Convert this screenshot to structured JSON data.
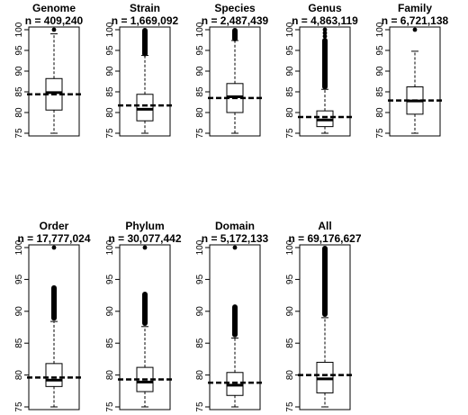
{
  "chart_data": [
    {
      "type": "box",
      "title": "Genome",
      "subtitle": "n = 409,240",
      "ylim": [
        75,
        100
      ],
      "yticks": [
        75,
        80,
        85,
        90,
        95,
        100
      ],
      "box": {
        "whisker_low": 75,
        "q1": 80.6,
        "median": 84.8,
        "q3": 88.2,
        "whisker_high": 99,
        "mean": 84.4
      },
      "outliers": [
        100
      ],
      "outlier_band": null
    },
    {
      "type": "box",
      "title": "Strain",
      "subtitle": "n = 1,669,092",
      "ylim": [
        75,
        100
      ],
      "yticks": [
        75,
        80,
        85,
        90,
        95,
        100
      ],
      "box": {
        "whisker_low": 75,
        "q1": 78,
        "median": 80.8,
        "q3": 84.4,
        "whisker_high": 93.8,
        "mean": 81.7
      },
      "outliers": [],
      "outlier_band": [
        94,
        100
      ]
    },
    {
      "type": "box",
      "title": "Species",
      "subtitle": "n = 2,487,439",
      "ylim": [
        75,
        100
      ],
      "yticks": [
        75,
        80,
        85,
        90,
        95,
        100
      ],
      "box": {
        "whisker_low": 75,
        "q1": 80,
        "median": 83.8,
        "q3": 87,
        "whisker_high": 97.4,
        "mean": 83.5
      },
      "outliers": [],
      "outlier_band": [
        97.6,
        100
      ]
    },
    {
      "type": "box",
      "title": "Genus",
      "subtitle": "n = 4,863,119",
      "ylim": [
        75,
        100
      ],
      "yticks": [
        75,
        80,
        85,
        90,
        95,
        100
      ],
      "box": {
        "whisker_low": 75,
        "q1": 76.6,
        "median": 78.2,
        "q3": 80.4,
        "whisker_high": 85.6,
        "mean": 78.9
      },
      "outliers": [
        100,
        99.2,
        98.4
      ],
      "outlier_band": [
        86,
        97.6
      ]
    },
    {
      "type": "box",
      "title": "Family",
      "subtitle": "n = 6,721,138",
      "ylim": [
        75,
        100
      ],
      "yticks": [
        75,
        80,
        85,
        90,
        95,
        100
      ],
      "box": {
        "whisker_low": 75,
        "q1": 79.6,
        "median": 82.8,
        "q3": 86.2,
        "whisker_high": 94.8,
        "mean": 82.9
      },
      "outliers": [
        100
      ],
      "outlier_band": null
    },
    {
      "type": "box",
      "title": "Order",
      "subtitle": "n = 17,777,024",
      "ylim": [
        75,
        100
      ],
      "yticks": [
        75,
        80,
        85,
        90,
        95,
        100
      ],
      "box": {
        "whisker_low": 75,
        "q1": 78.2,
        "median": 79.2,
        "q3": 81.8,
        "whisker_high": 88.4,
        "mean": 79.6
      },
      "outliers": [
        100
      ],
      "outlier_band": [
        88.8,
        93.8
      ]
    },
    {
      "type": "box",
      "title": "Phylum",
      "subtitle": "n = 30,077,442",
      "ylim": [
        75,
        100
      ],
      "yticks": [
        75,
        80,
        85,
        90,
        95,
        100
      ],
      "box": {
        "whisker_low": 75,
        "q1": 77.4,
        "median": 78.9,
        "q3": 81.2,
        "whisker_high": 87.6,
        "mean": 79.3
      },
      "outliers": [
        100
      ],
      "outlier_band": [
        88,
        92.8
      ]
    },
    {
      "type": "box",
      "title": "Domain",
      "subtitle": "n = 5,172,133",
      "ylim": [
        75,
        100
      ],
      "yticks": [
        75,
        80,
        85,
        90,
        95,
        100
      ],
      "box": {
        "whisker_low": 75,
        "q1": 76.8,
        "median": 78.4,
        "q3": 80.4,
        "whisker_high": 85.8,
        "mean": 78.8
      },
      "outliers": [
        100
      ],
      "outlier_band": [
        86.2,
        90.8
      ]
    },
    {
      "type": "box",
      "title": "All",
      "subtitle": "n = 69,176,627",
      "ylim": [
        75,
        100
      ],
      "yticks": [
        75,
        80,
        85,
        90,
        95,
        100
      ],
      "box": {
        "whisker_low": 75,
        "q1": 77.2,
        "median": 79.4,
        "q3": 82,
        "whisker_high": 89,
        "mean": 80.0
      },
      "outliers": [],
      "outlier_band": [
        89.4,
        100
      ]
    }
  ]
}
